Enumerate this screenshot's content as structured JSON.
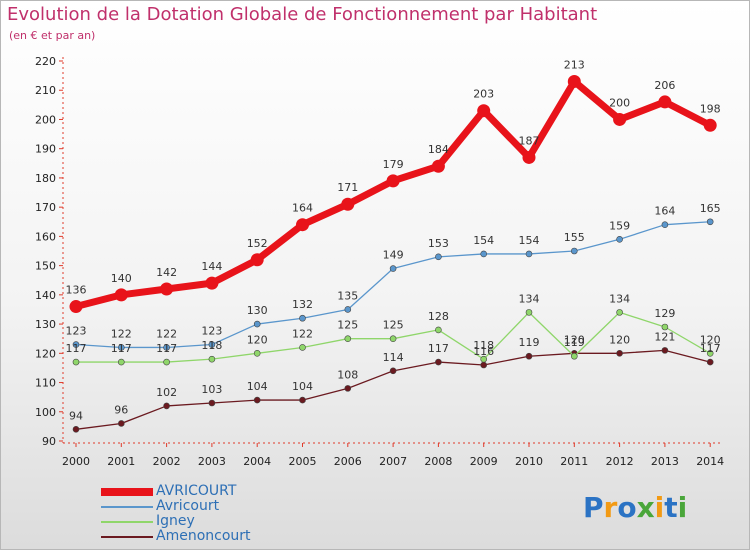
{
  "chart_data": {
    "type": "line",
    "title": "Evolution de la Dotation Globale de Fonctionnement par Habitant",
    "subtitle": "(en € et par an)",
    "x": [
      "2000",
      "2001",
      "2002",
      "2003",
      "2004",
      "2005",
      "2006",
      "2007",
      "2008",
      "2009",
      "2010",
      "2011",
      "2012",
      "2013",
      "2014"
    ],
    "ylim": [
      90,
      220
    ],
    "yticks": [
      90,
      100,
      110,
      120,
      130,
      140,
      150,
      160,
      170,
      180,
      190,
      200,
      210,
      220
    ],
    "grid": false,
    "legend_position": "bottom-left",
    "series": [
      {
        "name": "AVRICOURT",
        "color": "#e8131a",
        "values": [
          136,
          140,
          142,
          144,
          152,
          164,
          171,
          179,
          184,
          203,
          187,
          213,
          200,
          206,
          198
        ]
      },
      {
        "name": "Avricourt",
        "color": "#5a96cc",
        "values": [
          123,
          122,
          122,
          123,
          130,
          132,
          135,
          149,
          153,
          154,
          154,
          155,
          159,
          164,
          165
        ]
      },
      {
        "name": "Igney",
        "color": "#8fd66a",
        "values": [
          117,
          117,
          117,
          118,
          120,
          122,
          125,
          125,
          128,
          118,
          134,
          119,
          134,
          129,
          120
        ]
      },
      {
        "name": "Amenoncourt",
        "color": "#6b1a20",
        "values": [
          94,
          96,
          102,
          103,
          104,
          104,
          108,
          114,
          117,
          116,
          119,
          120,
          120,
          121,
          117
        ]
      }
    ]
  },
  "logo": {
    "letters": [
      "P",
      "r",
      "o",
      "x",
      "i",
      "t",
      "i"
    ],
    "colors": [
      "#2b73c4",
      "#f29a14",
      "#2b73c4",
      "#4aa63a",
      "#f29a14",
      "#2b73c4",
      "#4aa63a"
    ]
  }
}
